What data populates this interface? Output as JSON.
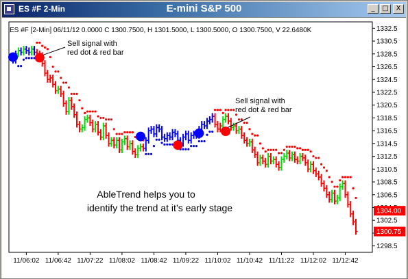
{
  "window": {
    "label": "ES #F 2-Min",
    "title": "E-mini S&P 500",
    "controls": {
      "minimize": "_",
      "maximize": "□",
      "close": "X"
    }
  },
  "info_line": "ES #F [2-Min] 06/11/12  0.0000 C 1300.7500, H 1301.5000, L 1300.5000, O 1300.7500, V 22.6480K",
  "annotations": [
    {
      "line1": "Sell signal with",
      "line2": "red dot & red bar"
    },
    {
      "line1": "Sell signal with",
      "line2": "red dot & red bar"
    }
  ],
  "caption": {
    "line1": "AbleTrend helps you to",
    "line2": "identify the trend at it’s early stage"
  },
  "colors": {
    "up": "#00dd00",
    "down": "#ff0000",
    "neutral": "#0000ff",
    "price_tag_bg": "#ff0000",
    "title_bar": "#0a246a"
  },
  "chart_data": {
    "type": "bar",
    "title": "E-mini S&P 500",
    "ylim": [
      1297.5,
      1333.5
    ],
    "yticks": [
      "1332.5",
      "1330.5",
      "1328.5",
      "1326.5",
      "1324.5",
      "1322.5",
      "1320.5",
      "1318.5",
      "1316.5",
      "1314.5",
      "1312.5",
      "1310.5",
      "1308.5",
      "1306.5",
      "1304.5",
      "1302.5",
      "1300.5",
      "1298.5"
    ],
    "ytick_values": [
      1332.5,
      1330.5,
      1328.5,
      1326.5,
      1324.5,
      1322.5,
      1320.5,
      1318.5,
      1316.5,
      1314.5,
      1312.5,
      1310.5,
      1308.5,
      1306.5,
      1304.5,
      1302.5,
      1300.5,
      1298.5
    ],
    "xticks": [
      "11/06:02",
      "11/06:42",
      "11/07:22",
      "11/08:02",
      "11/08:42",
      "11/09:22",
      "11/10:02",
      "11/10:42",
      "11/11:22",
      "11/12:02",
      "11/12:42"
    ],
    "price_tags": [
      {
        "label": "1304.00",
        "value": 1304.0
      },
      {
        "label": "1300.75",
        "value": 1300.75
      }
    ],
    "closes": [
      1327.5,
      1328.5,
      1329.0,
      1328.75,
      1329.25,
      1329.0,
      1328.75,
      1329.25,
      1328.75,
      1328.5,
      1328.25,
      1327.0,
      1325.5,
      1324.5,
      1324.75,
      1323.75,
      1322.75,
      1323.0,
      1322.25,
      1320.75,
      1319.5,
      1321.25,
      1320.25,
      1319.0,
      1317.5,
      1316.75,
      1317.0,
      1318.25,
      1318.5,
      1317.75,
      1316.75,
      1317.5,
      1316.25,
      1315.5,
      1317.25,
      1315.75,
      1314.5,
      1315.0,
      1314.25,
      1315.0,
      1313.5,
      1314.75,
      1315.25,
      1314.0,
      1314.5,
      1313.25,
      1312.75,
      1313.75,
      1314.0,
      1313.75,
      1315.0,
      1316.5,
      1316.75,
      1316.0,
      1317.0,
      1316.75,
      1315.5,
      1315.25,
      1315.75,
      1315.5,
      1316.25,
      1316.0,
      1315.0,
      1314.5,
      1315.5,
      1316.0,
      1315.0,
      1315.75,
      1316.0,
      1315.75,
      1316.75,
      1317.5,
      1317.25,
      1318.0,
      1318.25,
      1318.75,
      1317.5,
      1316.75,
      1317.25,
      1318.25,
      1318.75,
      1318.0,
      1317.0,
      1317.25,
      1316.5,
      1316.75,
      1315.75,
      1315.0,
      1314.5,
      1314.75,
      1313.5,
      1312.75,
      1311.5,
      1312.25,
      1311.75,
      1311.25,
      1312.5,
      1311.75,
      1312.0,
      1311.25,
      1310.75,
      1312.0,
      1312.5,
      1313.0,
      1312.25,
      1312.75,
      1312.0,
      1311.75,
      1312.5,
      1312.25,
      1311.5,
      1310.5,
      1311.25,
      1310.25,
      1309.75,
      1309.25,
      1308.25,
      1307.5,
      1306.5,
      1305.75,
      1306.75,
      1305.5,
      1306.0,
      1307.75,
      1308.25,
      1306.5,
      1305.0,
      1303.5,
      1302.25,
      1300.75
    ],
    "trend": [
      "b",
      "b",
      "g",
      "b",
      "g",
      "b",
      "b",
      "g",
      "b",
      "r",
      "r",
      "r",
      "r",
      "r",
      "r",
      "r",
      "r",
      "g",
      "r",
      "r",
      "r",
      "g",
      "r",
      "r",
      "r",
      "r",
      "g",
      "g",
      "g",
      "r",
      "r",
      "g",
      "r",
      "r",
      "g",
      "r",
      "r",
      "g",
      "r",
      "g",
      "r",
      "g",
      "g",
      "r",
      "g",
      "r",
      "r",
      "g",
      "g",
      "r",
      "b",
      "b",
      "b",
      "b",
      "b",
      "b",
      "b",
      "b",
      "b",
      "b",
      "b",
      "b",
      "b",
      "b",
      "b",
      "b",
      "b",
      "b",
      "b",
      "b",
      "b",
      "b",
      "b",
      "b",
      "b",
      "b",
      "r",
      "r",
      "r",
      "g",
      "g",
      "r",
      "r",
      "g",
      "r",
      "g",
      "r",
      "r",
      "r",
      "g",
      "r",
      "r",
      "r",
      "g",
      "r",
      "r",
      "g",
      "r",
      "g",
      "r",
      "r",
      "g",
      "g",
      "g",
      "r",
      "g",
      "r",
      "r",
      "g",
      "r",
      "r",
      "r",
      "g",
      "r",
      "r",
      "r",
      "r",
      "r",
      "r",
      "r",
      "g",
      "r",
      "g",
      "g",
      "g",
      "r",
      "r",
      "r",
      "r",
      "r"
    ],
    "signal_dots": [
      {
        "bar": 0,
        "value": 1328.0,
        "color": "blue"
      },
      {
        "bar": 10,
        "value": 1327.9,
        "color": "red"
      },
      {
        "bar": 48,
        "value": 1315.6,
        "color": "blue"
      },
      {
        "bar": 62,
        "value": 1314.25,
        "color": "red"
      },
      {
        "bar": 70,
        "value": 1316.1,
        "color": "blue"
      },
      {
        "bar": 80,
        "value": 1316.4,
        "color": "red"
      }
    ]
  }
}
